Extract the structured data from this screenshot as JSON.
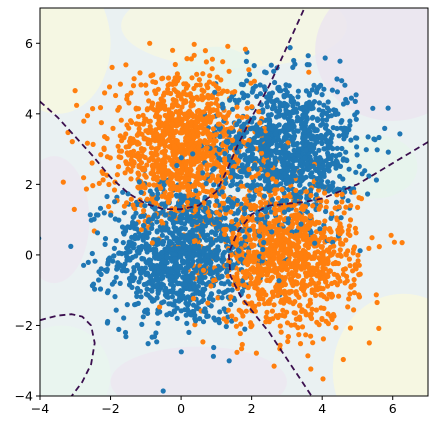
{
  "chart_data": {
    "type": "scatter",
    "title": "",
    "xlabel": "",
    "ylabel": "",
    "xlim": [
      -4,
      7
    ],
    "ylim": [
      -4,
      7
    ],
    "grid": false,
    "legend": "none",
    "x_ticks": [
      -4,
      -2,
      0,
      2,
      4,
      6
    ],
    "x_tick_labels": [
      "−4",
      "−2",
      "0",
      "2",
      "4",
      "6"
    ],
    "y_ticks": [
      -4,
      -2,
      0,
      2,
      4,
      6
    ],
    "y_tick_labels": [
      "−4",
      "−2",
      "0",
      "2",
      "4",
      "6"
    ],
    "series": [
      {
        "color": "#1f77b4",
        "clusters": [
          {
            "center": [
              0,
              0
            ],
            "spread": 1.0,
            "count": 1100
          },
          {
            "center": [
              3,
              3
            ],
            "spread": 1.0,
            "count": 1100
          }
        ]
      },
      {
        "color": "#ff7f0e",
        "clusters": [
          {
            "center": [
              0,
              3
            ],
            "spread": 1.0,
            "count": 1100
          },
          {
            "center": [
              3,
              0
            ],
            "spread": 1.0,
            "count": 1100
          }
        ]
      }
    ],
    "decision_boundary": {
      "style": "dashed",
      "color": "#3b0f4f",
      "curves": [
        [
          [
            -4,
            4.35
          ],
          [
            -3.5,
            3.9
          ],
          [
            -3,
            3.35
          ],
          [
            -2.5,
            2.8
          ],
          [
            -2,
            2.2
          ],
          [
            -1.5,
            1.75
          ],
          [
            -1,
            1.45
          ],
          [
            -0.5,
            1.3
          ],
          [
            0,
            1.3
          ],
          [
            0.5,
            1.4
          ],
          [
            1,
            1.8
          ],
          [
            1.3,
            2.4
          ],
          [
            1.6,
            3.1
          ],
          [
            2,
            3.9
          ],
          [
            2.5,
            4.8
          ],
          [
            3,
            5.9
          ],
          [
            3.5,
            7
          ]
        ],
        [
          [
            7,
            3.2
          ],
          [
            6.5,
            2.9
          ],
          [
            6,
            2.6
          ],
          [
            5.5,
            2.3
          ],
          [
            5,
            2
          ],
          [
            4.5,
            1.8
          ],
          [
            4,
            1.6
          ],
          [
            3.5,
            1.5
          ],
          [
            3,
            1.45
          ],
          [
            2.5,
            1.4
          ],
          [
            2,
            1.15
          ],
          [
            1.6,
            0.65
          ],
          [
            1.35,
            0.05
          ],
          [
            1.4,
            -0.6
          ],
          [
            1.7,
            -1.2
          ],
          [
            2.1,
            -1.7
          ],
          [
            2.5,
            -2.2
          ],
          [
            2.9,
            -2.8
          ],
          [
            3.3,
            -3.4
          ],
          [
            3.7,
            -4
          ]
        ],
        [
          [
            -4,
            -1.85
          ],
          [
            -3.5,
            -1.72
          ],
          [
            -3.1,
            -1.68
          ],
          [
            -2.8,
            -1.75
          ],
          [
            -2.55,
            -2
          ],
          [
            -2.45,
            -2.5
          ],
          [
            -2.55,
            -3.1
          ],
          [
            -2.8,
            -3.6
          ],
          [
            -3.1,
            -4
          ]
        ]
      ]
    },
    "background": "faint filled probability contours (purple-green-yellow)"
  }
}
